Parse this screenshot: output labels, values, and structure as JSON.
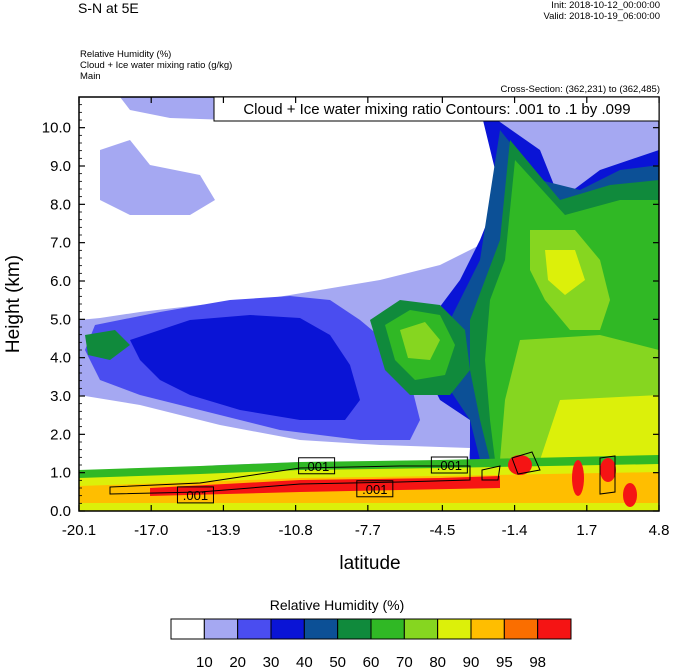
{
  "header": {
    "title": "S-N at 5E",
    "init": "Init: 2018-10-12_00:00:00",
    "valid": "Valid: 2018-10-19_06:00:00",
    "var_lines": [
      "Relative Humidity   (%)",
      "Cloud + Ice water mixing ratio   (g/kg)",
      "Main"
    ],
    "cross_section": "Cross-Section: (362,231) to (362,485)"
  },
  "chart_data": {
    "type": "heatmap",
    "subtitle_box": "Cloud + Ice water mixing ratio Contours: .001 to .1 by .099",
    "xlabel": "latitude",
    "ylabel": "Height (km)",
    "xlim": [
      -20.1,
      4.8
    ],
    "ylim": [
      0.0,
      10.8
    ],
    "x_ticks": [
      "-20.1",
      "-17.0",
      "-13.9",
      "-10.8",
      "-7.7",
      "-4.5",
      "-1.4",
      "1.7",
      "4.8"
    ],
    "y_ticks": [
      "0.0",
      "1.0",
      "2.0",
      "3.0",
      "4.0",
      "5.0",
      "6.0",
      "7.0",
      "8.0",
      "9.0",
      "10.0"
    ],
    "contour_labels": [
      {
        "text": ".001",
        "x": -15.1,
        "y": 0.42
      },
      {
        "text": ".001",
        "x": -9.9,
        "y": 1.18
      },
      {
        "text": ".001",
        "x": -7.4,
        "y": 0.58
      },
      {
        "text": ".001",
        "x": -4.2,
        "y": 1.2
      }
    ],
    "colorbar": {
      "title": "Relative Humidity  (%)",
      "levels": [
        "10",
        "20",
        "30",
        "40",
        "50",
        "60",
        "70",
        "80",
        "90",
        "95",
        "98"
      ],
      "colors": [
        "#ffffff",
        "#a5a8f2",
        "#4a4df0",
        "#0a14d6",
        "#0c5096",
        "#108a3c",
        "#30b825",
        "#86d620",
        "#dcf00a",
        "#ffbe00",
        "#fa6e00",
        "#f51414"
      ]
    }
  }
}
